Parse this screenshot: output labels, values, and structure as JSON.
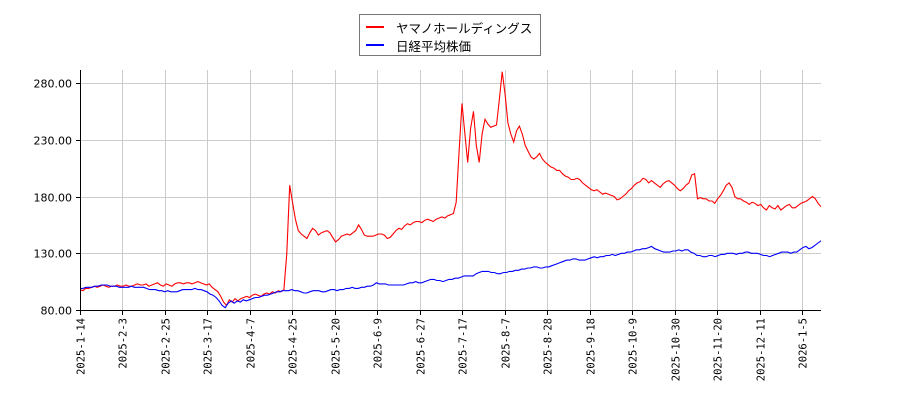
{
  "chart_data": {
    "type": "line",
    "title": "",
    "xlabel": "",
    "ylabel": "",
    "ylim": [
      80,
      290
    ],
    "yticks": [
      "80.00",
      "130.00",
      "180.00",
      "230.00",
      "280.00"
    ],
    "xticks": [
      "2025-1-14",
      "2025-2-3",
      "2025-2-25",
      "2025-3-17",
      "2025-4-7",
      "2025-4-25",
      "2025-5-20",
      "2025-6-9",
      "2025-6-27",
      "2025-7-17",
      "2025-8-7",
      "2025-8-28",
      "2025-9-18",
      "2025-10-9",
      "2025-10-30",
      "2025-11-20",
      "2025-12-11",
      "2026-1-5"
    ],
    "grid": true,
    "legend_position": "top-center",
    "series": [
      {
        "name": "ヤマノホールディングス",
        "color": "#ff0000",
        "values": [
          98,
          97,
          99,
          99,
          100,
          101,
          100,
          101,
          102,
          101,
          100,
          101,
          101,
          102,
          101,
          101,
          102,
          101,
          101,
          102,
          103,
          102,
          102,
          103,
          101,
          102,
          103,
          104,
          102,
          101,
          103,
          102,
          101,
          103,
          104,
          104,
          103,
          104,
          104,
          103,
          104,
          105,
          104,
          103,
          102,
          103,
          100,
          98,
          96,
          92,
          87,
          84,
          89,
          87,
          90,
          88,
          90,
          91,
          92,
          91,
          93,
          94,
          93,
          92,
          94,
          95,
          94,
          96,
          95,
          97,
          96,
          98,
          130,
          190,
          175,
          160,
          150,
          147,
          145,
          143,
          148,
          152,
          150,
          146,
          148,
          149,
          150,
          148,
          144,
          140,
          142,
          145,
          146,
          147,
          146,
          148,
          150,
          155,
          151,
          146,
          145,
          145,
          145,
          146,
          147,
          147,
          146,
          143,
          144,
          147,
          150,
          152,
          151,
          154,
          156,
          155,
          157,
          158,
          158,
          157,
          159,
          160,
          159,
          158,
          160,
          161,
          162,
          161,
          163,
          164,
          165,
          175,
          220,
          262,
          235,
          210,
          240,
          255,
          225,
          210,
          235,
          248,
          244,
          241,
          242,
          243,
          265,
          290,
          270,
          245,
          235,
          228,
          238,
          242,
          235,
          225,
          220,
          215,
          213,
          215,
          218,
          213,
          210,
          208,
          206,
          205,
          203,
          203,
          200,
          198,
          197,
          195,
          195,
          196,
          195,
          192,
          190,
          188,
          186,
          185,
          186,
          184,
          182,
          183,
          182,
          181,
          180,
          177,
          178,
          180,
          182,
          185,
          187,
          190,
          192,
          193,
          196,
          195,
          192,
          194,
          192,
          190,
          188,
          191,
          193,
          194,
          192,
          190,
          187,
          185,
          187,
          190,
          192,
          199,
          200,
          178,
          179,
          178,
          178,
          176,
          176,
          174,
          178,
          181,
          185,
          190,
          192,
          188,
          180,
          178,
          178,
          176,
          175,
          173,
          175,
          174,
          172,
          173,
          170,
          168,
          172,
          170,
          169,
          172,
          168,
          170,
          172,
          173,
          170,
          170,
          172,
          174,
          175,
          176,
          178,
          180,
          178,
          174,
          171
        ]
      },
      {
        "name": "日経平均株価",
        "color": "#0000ff",
        "values": [
          99,
          99,
          100,
          100,
          100,
          101,
          101,
          102,
          102,
          102,
          101,
          101,
          101,
          100,
          100,
          100,
          100,
          101,
          100,
          100,
          100,
          100,
          99,
          98,
          98,
          98,
          97,
          97,
          96,
          97,
          96,
          96,
          96,
          97,
          98,
          98,
          98,
          98,
          99,
          98,
          98,
          97,
          96,
          94,
          93,
          91,
          88,
          84,
          82,
          86,
          88,
          86,
          88,
          87,
          89,
          88,
          89,
          90,
          91,
          91,
          92,
          93,
          93,
          94,
          95,
          96,
          96,
          97,
          97,
          97,
          98,
          97,
          97,
          96,
          95,
          95,
          96,
          97,
          97,
          97,
          96,
          96,
          97,
          98,
          98,
          97,
          98,
          98,
          99,
          99,
          100,
          99,
          99,
          100,
          100,
          101,
          101,
          102,
          104,
          103,
          103,
          103,
          102,
          102,
          102,
          102,
          102,
          102,
          103,
          104,
          104,
          105,
          104,
          104,
          105,
          106,
          107,
          107,
          106,
          106,
          105,
          106,
          107,
          107,
          108,
          108,
          109,
          110,
          110,
          110,
          110,
          112,
          113,
          114,
          114,
          114,
          113,
          113,
          112,
          112,
          113,
          113,
          114,
          114,
          115,
          115,
          116,
          116,
          117,
          117,
          118,
          118,
          117,
          117,
          118,
          118,
          119,
          120,
          121,
          122,
          123,
          124,
          124,
          125,
          125,
          124,
          124,
          124,
          125,
          126,
          127,
          126,
          127,
          127,
          128,
          128,
          129,
          128,
          129,
          130,
          130,
          131,
          131,
          132,
          133,
          133,
          134,
          134,
          135,
          136,
          134,
          133,
          132,
          131,
          131,
          131,
          132,
          132,
          133,
          132,
          133,
          133,
          131,
          130,
          128,
          128,
          127,
          127,
          128,
          128,
          127,
          128,
          129,
          129,
          130,
          130,
          130,
          129,
          130,
          130,
          131,
          131,
          130,
          130,
          130,
          129,
          128,
          128,
          127,
          128,
          129,
          130,
          131,
          131,
          131,
          130,
          131,
          131,
          133,
          135,
          136,
          134,
          135,
          137,
          139,
          141
        ]
      }
    ]
  },
  "legend": {
    "items": [
      {
        "label": "ヤマノホールディングス",
        "color": "#ff0000"
      },
      {
        "label": "日経平均株価",
        "color": "#0000ff"
      }
    ]
  }
}
